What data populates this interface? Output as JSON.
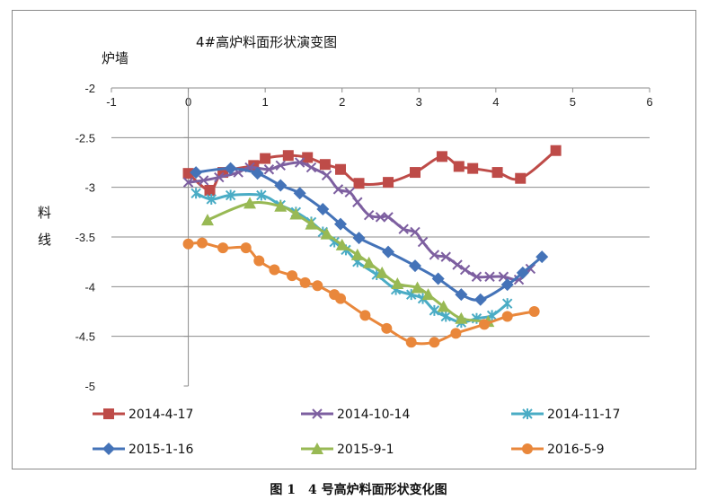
{
  "chart_data": {
    "type": "line",
    "title": "4#高炉料面形状演变图",
    "ylabel_top": "炉墙",
    "ylabel_side": "料线",
    "xlim": [
      -1,
      6
    ],
    "ylim": [
      -5,
      -2
    ],
    "x_ticks": [
      "-1",
      "0",
      "1",
      "2",
      "3",
      "4",
      "5",
      "6"
    ],
    "y_ticks": [
      "-2",
      "-2.5",
      "-3",
      "-3.5",
      "-4",
      "-4.5",
      "-5"
    ],
    "grid": "horizontal",
    "legend_position": "bottom",
    "series": [
      {
        "name": "2014-4-17",
        "color": "#be4b48",
        "marker": "square",
        "x": [
          0.0,
          0.28,
          0.45,
          0.85,
          1.0,
          1.3,
          1.55,
          1.78,
          1.98,
          2.22,
          2.6,
          2.95,
          3.3,
          3.52,
          3.7,
          4.02,
          4.32,
          4.78
        ],
        "y": [
          -2.86,
          -3.03,
          -2.85,
          -2.78,
          -2.71,
          -2.68,
          -2.7,
          -2.77,
          -2.82,
          -2.96,
          -2.95,
          -2.85,
          -2.69,
          -2.79,
          -2.81,
          -2.85,
          -2.91,
          -2.63
        ]
      },
      {
        "name": "2014-10-14",
        "color": "#7d5fa0",
        "marker": "cross",
        "x": [
          0.0,
          0.2,
          0.4,
          0.65,
          0.8,
          1.05,
          1.2,
          1.45,
          1.6,
          1.8,
          1.95,
          2.1,
          2.2,
          2.35,
          2.5,
          2.6,
          2.8,
          2.95,
          3.05,
          3.2,
          3.35,
          3.5,
          3.6,
          3.75,
          3.92,
          4.1,
          4.3,
          4.45
        ],
        "y": [
          -2.95,
          -2.93,
          -2.9,
          -2.85,
          -2.8,
          -2.82,
          -2.78,
          -2.75,
          -2.8,
          -2.88,
          -3.02,
          -3.05,
          -3.15,
          -3.28,
          -3.3,
          -3.3,
          -3.42,
          -3.45,
          -3.55,
          -3.68,
          -3.7,
          -3.78,
          -3.83,
          -3.9,
          -3.9,
          -3.9,
          -3.93,
          -3.82
        ]
      },
      {
        "name": "2014-11-17",
        "color": "#4aacc5",
        "marker": "asterisk",
        "x": [
          0.1,
          0.3,
          0.55,
          0.95,
          1.2,
          1.4,
          1.6,
          1.75,
          1.9,
          2.05,
          2.2,
          2.45,
          2.7,
          2.9,
          3.05,
          3.2,
          3.35,
          3.55,
          3.75,
          3.95,
          4.15
        ],
        "y": [
          -3.06,
          -3.12,
          -3.08,
          -3.08,
          -3.18,
          -3.25,
          -3.35,
          -3.45,
          -3.55,
          -3.63,
          -3.75,
          -3.88,
          -4.03,
          -4.08,
          -4.12,
          -4.24,
          -4.3,
          -4.36,
          -4.32,
          -4.29,
          -4.17
        ]
      },
      {
        "name": "2015-1-16",
        "color": "#4473b8",
        "marker": "diamond",
        "x": [
          0.1,
          0.55,
          0.9,
          1.2,
          1.45,
          1.75,
          1.98,
          2.22,
          2.6,
          2.95,
          3.25,
          3.55,
          3.8,
          4.15,
          4.35,
          4.6
        ],
        "y": [
          -2.85,
          -2.81,
          -2.86,
          -2.98,
          -3.06,
          -3.22,
          -3.37,
          -3.51,
          -3.65,
          -3.79,
          -3.92,
          -4.08,
          -4.13,
          -3.98,
          -3.86,
          -3.7
        ]
      },
      {
        "name": "2015-9-1",
        "color": "#98b954",
        "marker": "triangle",
        "x": [
          0.25,
          0.8,
          1.2,
          1.4,
          1.6,
          1.8,
          2.0,
          2.2,
          2.35,
          2.52,
          2.72,
          2.98,
          3.12,
          3.32,
          3.55,
          3.9
        ],
        "y": [
          -3.33,
          -3.16,
          -3.19,
          -3.27,
          -3.37,
          -3.47,
          -3.58,
          -3.68,
          -3.76,
          -3.86,
          -3.97,
          -4.01,
          -4.08,
          -4.2,
          -4.32,
          -4.35
        ]
      },
      {
        "name": "2016-5-9",
        "color": "#e9873b",
        "marker": "circle",
        "x": [
          0.0,
          0.18,
          0.45,
          0.75,
          0.92,
          1.12,
          1.35,
          1.52,
          1.68,
          1.9,
          1.98,
          2.3,
          2.58,
          2.9,
          3.2,
          3.48,
          3.85,
          4.15,
          4.5
        ],
        "y": [
          -3.57,
          -3.56,
          -3.61,
          -3.61,
          -3.74,
          -3.83,
          -3.89,
          -3.96,
          -3.99,
          -4.08,
          -4.12,
          -4.29,
          -4.42,
          -4.56,
          -4.56,
          -4.47,
          -4.38,
          -4.3,
          -4.25
        ]
      }
    ]
  },
  "caption": "图 1　4 号高炉料面形状变化图"
}
